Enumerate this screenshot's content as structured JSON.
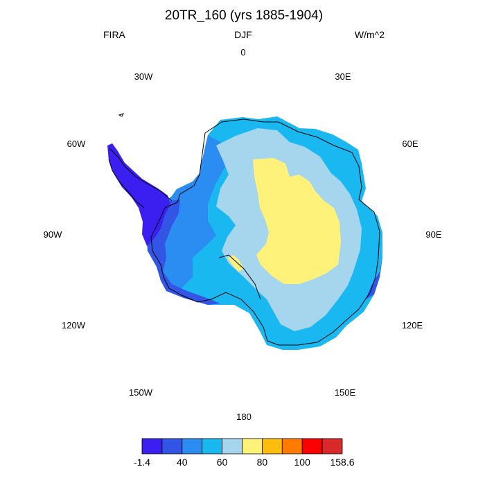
{
  "chart_data": {
    "type": "heatmap",
    "projection": "south-polar stereographic",
    "title": "20TR_160 (yrs 1885-1904)",
    "left_string": "FIRA",
    "center_string": "DJF",
    "right_string": "W/m^2",
    "longitude_labels": [
      {
        "name": "0"
      },
      {
        "name": "30E"
      },
      {
        "name": "60E"
      },
      {
        "name": "90E"
      },
      {
        "name": "120E"
      },
      {
        "name": "150E"
      },
      {
        "name": "180"
      },
      {
        "name": "150W"
      },
      {
        "name": "120W"
      },
      {
        "name": "90W"
      },
      {
        "name": "60W"
      },
      {
        "name": "30W"
      }
    ],
    "colorbar": {
      "colors": [
        "#3a1ff0",
        "#3355e6",
        "#2b8cf2",
        "#1ab8f0",
        "#a6d5ee",
        "#fff27a",
        "#ffbe0e",
        "#ff7a00",
        "#fa0000",
        "#d82a2a"
      ],
      "tick_labels": [
        "-1.4",
        "40",
        "60",
        "80",
        "100",
        "158.6"
      ]
    },
    "regions": [
      {
        "name": "peninsula",
        "level": 0
      },
      {
        "name": "west-coast",
        "level": 1
      },
      {
        "name": "west-outer",
        "level": 2
      },
      {
        "name": "ice-sheet-ring",
        "level": 3
      },
      {
        "name": "plateau-slope",
        "level": 4
      },
      {
        "name": "east-plateau-core",
        "level": 5
      },
      {
        "name": "siple-coast-patch",
        "level": 5
      }
    ]
  }
}
